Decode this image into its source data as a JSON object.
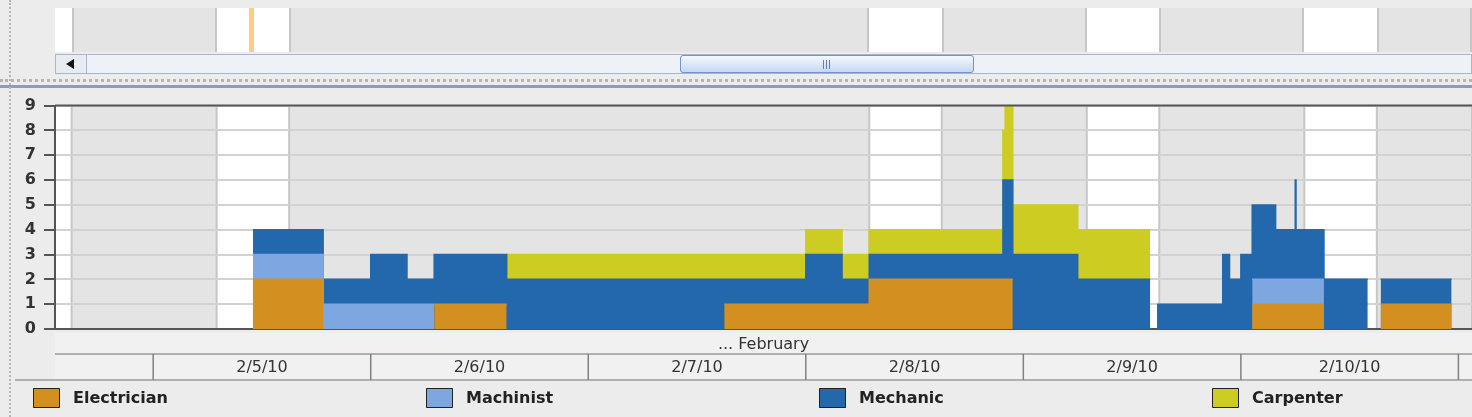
{
  "chart_data": {
    "type": "area",
    "stacked": true,
    "x": [
      "--02-05T11:00",
      "--02-05T18:45",
      "--02-05T18:45",
      "--02-06T00:00",
      "--02-06T00:00",
      "--02-06T04:00",
      "--02-06T04:00",
      "--02-06T07:00",
      "--02-06T07:00",
      "--02-06T15:00",
      "--02-06T15:00",
      "--02-07T15:00",
      "--02-07T15:00",
      "--02-08T00:00",
      "--02-08T00:00",
      "--02-08T04:00",
      "--02-08T04:00",
      "--02-08T07:00",
      "--02-08T07:00",
      "--02-08T21:45",
      "--02-08T21:45",
      "--02-08T22:00",
      "--02-08T22:00",
      "--02-08T22:50",
      "--02-08T22:50",
      "--02-09T06:00",
      "--02-09T06:00",
      "--02-09T14:00",
      "--02-09T14:45",
      "--02-09T22:00",
      "--02-09T22:00",
      "--02-09T22:45",
      "--02-09T22:45",
      "--02-10T00:00",
      "--02-10T00:00",
      "--02-10T01:15",
      "--02-10T01:15",
      "--02-10T03:50",
      "--02-10T03:50",
      "--02-10T06:00",
      "--02-10T06:00",
      "--02-10T06:05",
      "--02-10T06:05",
      "--02-10T09:10",
      "--02-10T09:10",
      "--02-10T14:00",
      "--02-10T15:25",
      "--02-10T23:15"
    ],
    "series": [
      {
        "name": "Electrician",
        "color": "#d38f20",
        "values": [
          2,
          2,
          null,
          null,
          null,
          null,
          null,
          null,
          1,
          1,
          null,
          null,
          1,
          1,
          1,
          1,
          1,
          1,
          2,
          2,
          2,
          2,
          2,
          2,
          null,
          null,
          null,
          null,
          null,
          null,
          null,
          null,
          null,
          null,
          null,
          null,
          1,
          1,
          1,
          1,
          1,
          1,
          1,
          1,
          null,
          null,
          1,
          1
        ]
      },
      {
        "name": "Machinist",
        "color": "#7ea6e0",
        "values": [
          1,
          1,
          1,
          1,
          1,
          1,
          1,
          1,
          null,
          null,
          null,
          null,
          null,
          null,
          null,
          null,
          null,
          null,
          null,
          null,
          null,
          null,
          null,
          null,
          null,
          null,
          null,
          null,
          null,
          null,
          null,
          null,
          null,
          null,
          null,
          null,
          1,
          1,
          1,
          1,
          1,
          1,
          1,
          1,
          null,
          null,
          null,
          null
        ]
      },
      {
        "name": "Mechanic",
        "color": "#2368ac",
        "values": [
          1,
          1,
          1,
          1,
          2,
          2,
          1,
          1,
          2,
          2,
          2,
          2,
          1,
          1,
          2,
          2,
          1,
          1,
          1,
          1,
          4,
          4,
          4,
          4,
          3,
          3,
          2,
          2,
          1,
          1,
          3,
          3,
          2,
          2,
          3,
          3,
          3,
          3,
          2,
          2,
          4,
          4,
          2,
          2,
          2,
          2,
          1,
          1
        ]
      },
      {
        "name": "Carpenter",
        "color": "#cccc22",
        "values": [
          null,
          null,
          null,
          null,
          null,
          null,
          null,
          null,
          null,
          null,
          1,
          1,
          1,
          1,
          1,
          1,
          1,
          1,
          1,
          1,
          2,
          2,
          3,
          3,
          2,
          2,
          2,
          2,
          null,
          null,
          null,
          null,
          null,
          null,
          null,
          null,
          null,
          null,
          null,
          null,
          null,
          null,
          null,
          null,
          null,
          null,
          null,
          null
        ]
      }
    ],
    "xlim": [
      "--02-04T13:10",
      "--02-11T01:30"
    ],
    "xticks": [
      {
        "value": "--02-05T12:00",
        "label": "2/5/10"
      },
      {
        "value": "--02-06T12:00",
        "label": "2/6/10"
      },
      {
        "value": "--02-07T12:00",
        "label": "2/7/10"
      },
      {
        "value": "--02-08T12:00",
        "label": "2/8/10"
      },
      {
        "value": "--02-09T12:00",
        "label": "2/9/10"
      },
      {
        "value": "--02-10T12:00",
        "label": "2/10/10"
      }
    ],
    "xlabel": "... February",
    "ylim": [
      0,
      9
    ],
    "yticks": [
      0,
      1,
      2,
      3,
      4,
      5,
      6,
      7,
      8,
      9
    ],
    "bands": [
      {
        "axis": "x",
        "from": "--02-04T15:00",
        "to": "--02-05T07:00",
        "color": "#e4e4e4"
      },
      {
        "axis": "x",
        "from": "--02-05T15:00",
        "to": "--02-08T07:00",
        "color": "#e4e4e4"
      },
      {
        "axis": "x",
        "from": "--02-08T15:00",
        "to": "--02-09T07:00",
        "color": "#e4e4e4"
      },
      {
        "axis": "x",
        "from": "--02-09T15:00",
        "to": "--02-10T07:00",
        "color": "#e4e4e4"
      },
      {
        "axis": "x",
        "from": "--02-10T15:00",
        "to": "--02-11T01:30",
        "color": "#e4e4e4"
      }
    ],
    "grid": "y",
    "legend": "bottom"
  }
}
